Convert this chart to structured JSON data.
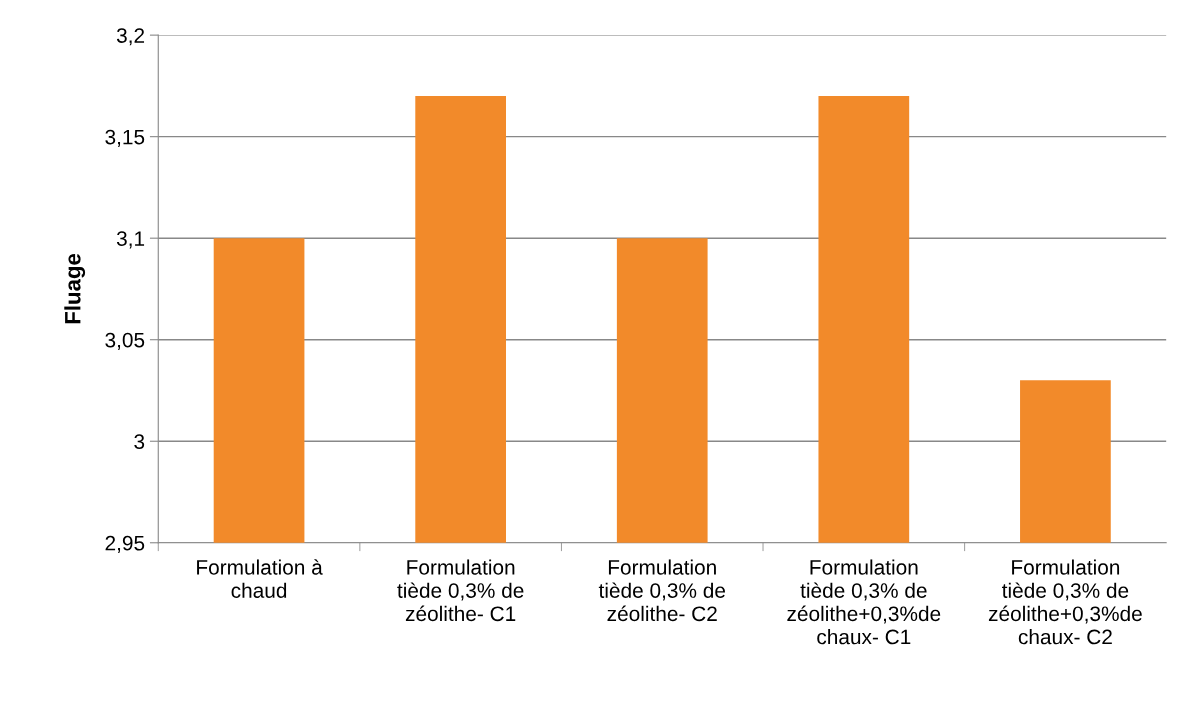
{
  "chart_data": {
    "type": "bar",
    "ylabel": "Fluage",
    "categories": [
      "Formulation à\nchaud",
      "Formulation\ntiède 0,3% de\nzéolithe- C1",
      "Formulation\ntiède 0,3% de\nzéolithe- C2",
      "Formulation\ntiède 0,3% de\nzéolithe+0,3%de\nchaux- C1",
      "Formulation\ntiède 0,3% de\nzéolithe+0,3%de\nchaux- C2"
    ],
    "values": [
      3.1,
      3.17,
      3.1,
      3.17,
      3.03
    ],
    "color": "#f28a2a",
    "ylim": [
      2.95,
      3.2
    ],
    "yticks": [
      {
        "value": 2.95,
        "label": "2,95"
      },
      3,
      {
        "value": 3.05,
        "label": "3,05"
      },
      {
        "value": 3.1,
        "label": "3,1"
      },
      {
        "value": 3.15,
        "label": "3,15"
      },
      {
        "value": 3.2,
        "label": "3,2"
      }
    ],
    "grid": "y",
    "legend": false
  }
}
